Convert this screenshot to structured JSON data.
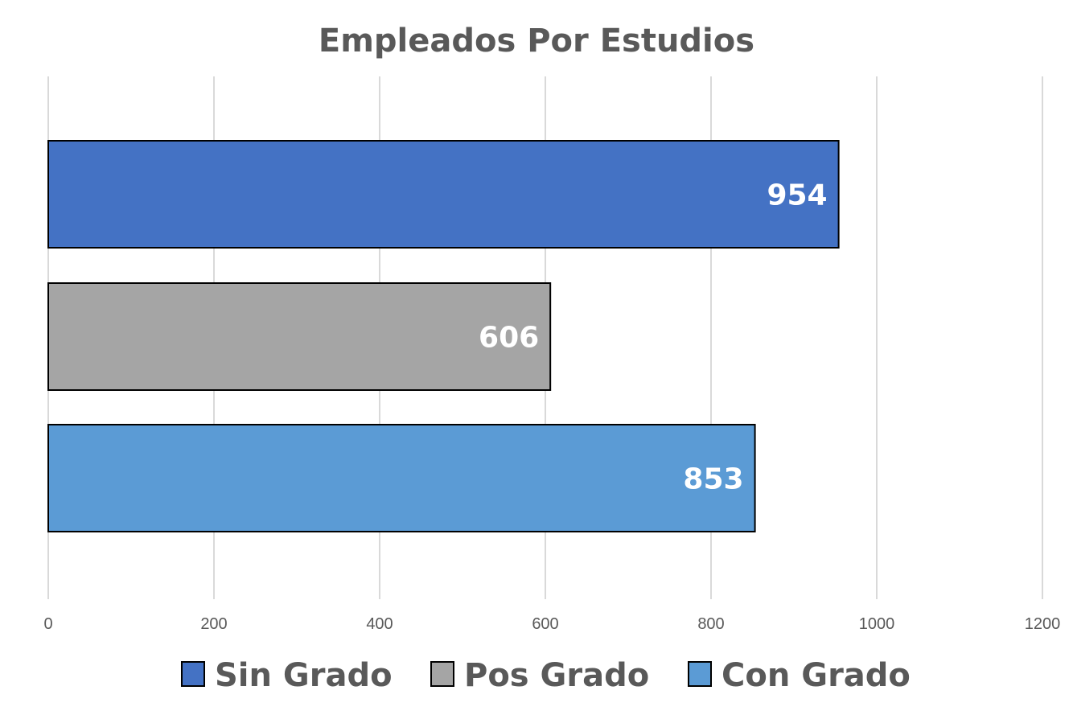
{
  "chart_data": {
    "type": "bar",
    "orientation": "horizontal",
    "title": "Empleados Por Estudios",
    "xlabel": "",
    "ylabel": "",
    "xlim": [
      0,
      1200
    ],
    "x_ticks": [
      "0",
      "200",
      "400",
      "600",
      "800",
      "1000",
      "1200"
    ],
    "grid": true,
    "legend_position": "bottom",
    "series": [
      {
        "name": "Sin Grado",
        "value": 954,
        "label": "954",
        "color": "#4472C4"
      },
      {
        "name": "Pos Grado",
        "value": 606,
        "label": "606",
        "color": "#A5A5A5"
      },
      {
        "name": "Con Grado",
        "value": 853,
        "label": "853",
        "color": "#5B9BD5"
      }
    ]
  }
}
